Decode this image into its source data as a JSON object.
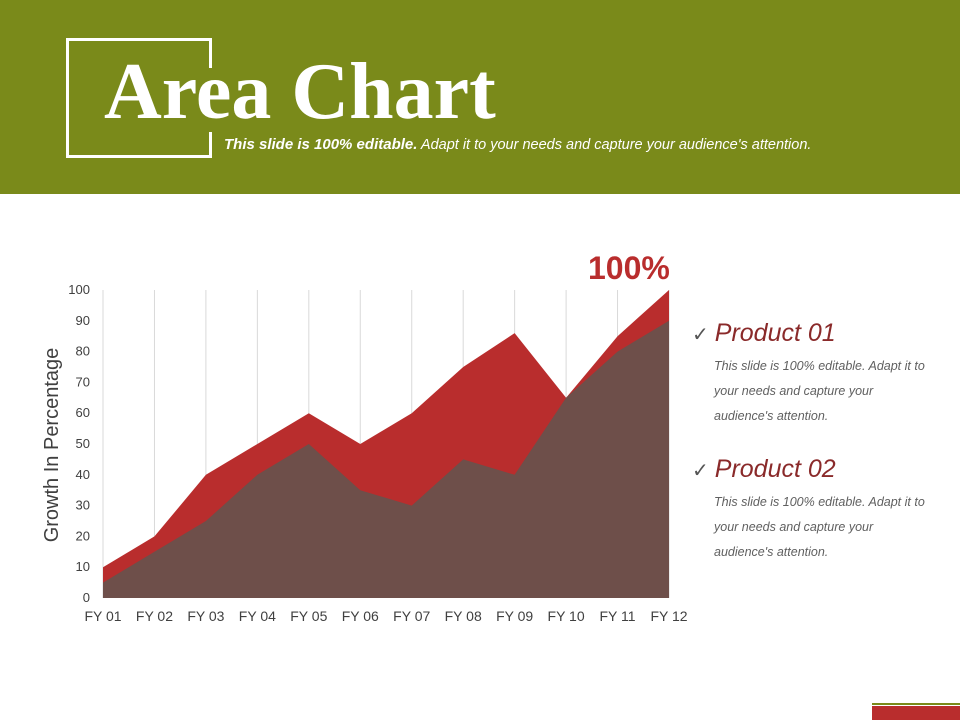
{
  "slide": {
    "title": "Area Chart",
    "subtitle_lead": "This slide is 100% editable.",
    "subtitle_rest": " Adapt it to your needs and capture your audience's attention.",
    "callout": "100%",
    "colors": {
      "header": "#7a8a1a",
      "product01": "#b92d2d",
      "product02": "#6e4f4a",
      "accent": "#b92d2d"
    }
  },
  "legend": [
    {
      "label": "Product 01",
      "desc": "This slide is 100% editable. Adapt it to your needs and capture your audience's attention."
    },
    {
      "label": "Product 02",
      "desc": "This slide is 100% editable. Adapt it to your needs and capture your audience's attention."
    }
  ],
  "chart_data": {
    "type": "area",
    "categories": [
      "FY 01",
      "FY 02",
      "FY 03",
      "FY 04",
      "FY 05",
      "FY 06",
      "FY 07",
      "FY 08",
      "FY 09",
      "FY 10",
      "FY 11",
      "FY 12"
    ],
    "series": [
      {
        "name": "Product 01",
        "values": [
          10,
          20,
          40,
          50,
          60,
          50,
          60,
          75,
          86,
          65,
          85,
          100
        ]
      },
      {
        "name": "Product 02",
        "values": [
          5,
          15,
          25,
          40,
          50,
          35,
          30,
          45,
          40,
          65,
          80,
          90
        ]
      }
    ],
    "ylabel": "Growth In Percentage",
    "ylim": [
      0,
      100
    ],
    "yticks": [
      0,
      10,
      20,
      30,
      40,
      50,
      60,
      70,
      80,
      90,
      100
    ],
    "grid": "vertical",
    "legend": "right"
  }
}
